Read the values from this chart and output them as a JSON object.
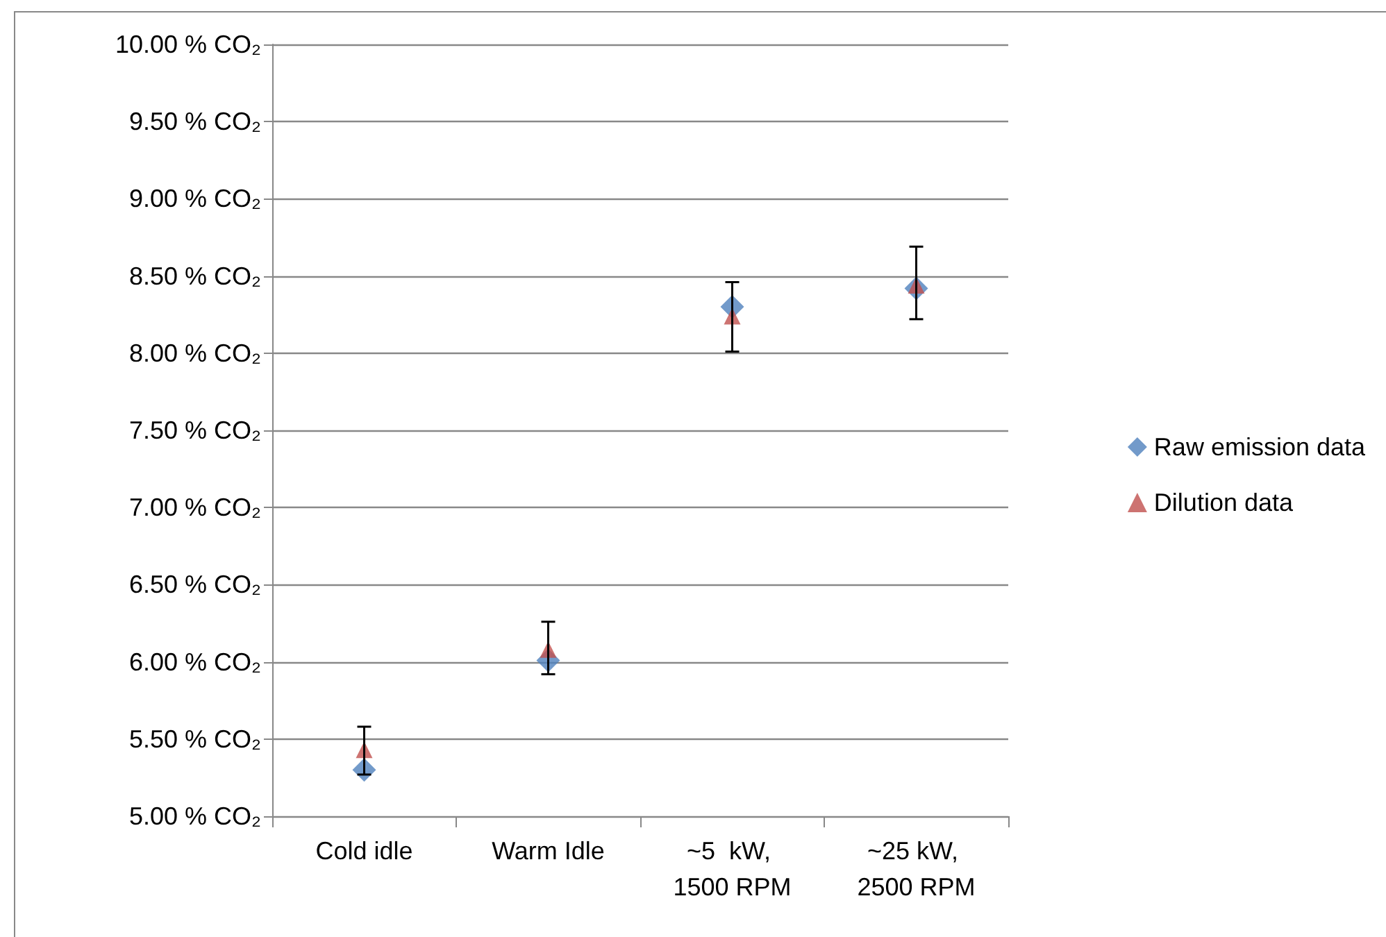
{
  "chart_data": {
    "type": "scatter",
    "categories": [
      "Cold idle",
      "Warm Idle",
      "~5  kW, 1500 RPM",
      "~25 kW, 2500 RPM"
    ],
    "series": [
      {
        "name": "Raw emission data",
        "color": "#4f81bd",
        "marker": "diamond",
        "values": [
          5.3,
          6.01,
          8.3,
          8.42
        ]
      },
      {
        "name": "Dilution data",
        "color": "#c0504d",
        "marker": "triangle",
        "values": [
          5.43,
          6.08,
          8.24,
          8.44
        ],
        "errors": [
          [
            5.27,
            5.58
          ],
          [
            5.92,
            6.26
          ],
          [
            8.01,
            8.46
          ],
          [
            8.22,
            8.69
          ]
        ]
      }
    ],
    "ylim": [
      5,
      10
    ],
    "yticks": [
      {
        "value": 5,
        "label": "5.00 % CO₂"
      },
      {
        "value": 5.5,
        "label": "5.50 % CO₂"
      },
      {
        "value": 6,
        "label": "6.00 % CO₂"
      },
      {
        "value": 6.5,
        "label": "6.50 % CO₂"
      },
      {
        "value": 7,
        "label": "7.00 % CO₂"
      },
      {
        "value": 7.5,
        "label": "7.50 % CO₂"
      },
      {
        "value": 8,
        "label": "8.00 % CO₂"
      },
      {
        "value": 8.5,
        "label": "8.50 % CO₂"
      },
      {
        "value": 9,
        "label": "9.00 % CO₂"
      },
      {
        "value": 9.5,
        "label": "9.50 % CO₂"
      },
      {
        "value": 10,
        "label": "10.00 % CO₂"
      }
    ],
    "grid": "y",
    "legend": "right"
  }
}
